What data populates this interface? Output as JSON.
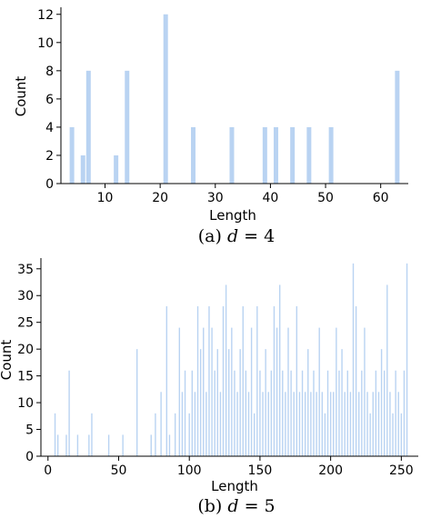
{
  "colors": {
    "bar": "#b9d3f2",
    "axis": "#000000"
  },
  "chart_data": [
    {
      "type": "bar",
      "caption": {
        "prefix": "(a) ",
        "var": "d",
        "rest": " = 4"
      },
      "xlabel": "Length",
      "ylabel": "Count",
      "xlim": [
        2,
        65
      ],
      "ylim": [
        0,
        12.5
      ],
      "xticks": [
        10,
        20,
        30,
        40,
        50,
        60
      ],
      "yticks": [
        0,
        2,
        4,
        6,
        8,
        10,
        12
      ],
      "grid": false,
      "x": [
        4,
        6,
        7,
        12,
        14,
        21,
        26,
        33,
        39,
        41,
        44,
        47,
        51,
        63
      ],
      "values": [
        4,
        2,
        8,
        2,
        8,
        12,
        4,
        4,
        4,
        4,
        4,
        4,
        4,
        8
      ]
    },
    {
      "type": "bar",
      "caption": {
        "prefix": "(b) ",
        "var": "d",
        "rest": " = 5"
      },
      "xlabel": "Length",
      "ylabel": "Count",
      "xlim": [
        -5,
        262
      ],
      "ylim": [
        0,
        37
      ],
      "xticks": [
        0,
        50,
        100,
        150,
        200,
        250
      ],
      "yticks": [
        0,
        5,
        10,
        15,
        20,
        25,
        30,
        35
      ],
      "grid": false,
      "x": [
        5,
        7,
        13,
        15,
        21,
        29,
        31,
        43,
        53,
        63,
        73,
        76,
        80,
        84,
        86,
        90,
        93,
        95,
        97,
        100,
        102,
        104,
        106,
        108,
        110,
        112,
        114,
        116,
        118,
        120,
        122,
        124,
        126,
        128,
        130,
        132,
        134,
        136,
        138,
        140,
        142,
        144,
        146,
        148,
        150,
        152,
        154,
        156,
        158,
        160,
        162,
        164,
        166,
        168,
        170,
        172,
        174,
        176,
        178,
        180,
        182,
        184,
        186,
        188,
        190,
        192,
        194,
        196,
        198,
        200,
        202,
        204,
        206,
        208,
        210,
        212,
        214,
        216,
        218,
        220,
        222,
        224,
        226,
        228,
        230,
        232,
        234,
        236,
        238,
        240,
        242,
        244,
        246,
        248,
        250,
        252,
        254
      ],
      "values": [
        8,
        4,
        4,
        16,
        4,
        4,
        8,
        4,
        4,
        20,
        4,
        8,
        12,
        28,
        4,
        8,
        24,
        12,
        16,
        8,
        16,
        12,
        28,
        20,
        24,
        12,
        28,
        24,
        16,
        20,
        12,
        28,
        32,
        20,
        24,
        16,
        12,
        20,
        28,
        16,
        12,
        24,
        8,
        28,
        16,
        12,
        20,
        12,
        16,
        28,
        24,
        32,
        16,
        12,
        24,
        16,
        12,
        28,
        12,
        16,
        12,
        20,
        12,
        16,
        12,
        24,
        12,
        8,
        16,
        12,
        12,
        24,
        16,
        20,
        12,
        16,
        12,
        36,
        28,
        12,
        16,
        24,
        12,
        8,
        12,
        16,
        12,
        20,
        16,
        32,
        12,
        8,
        16,
        12,
        8,
        16,
        36
      ]
    }
  ]
}
